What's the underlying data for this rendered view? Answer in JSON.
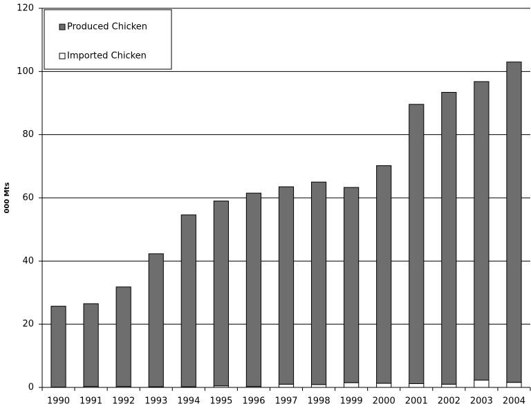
{
  "chart_data": {
    "type": "stacked-bar",
    "y_label": "000 Mts",
    "categories": [
      "1990",
      "1991",
      "1992",
      "1993",
      "1994",
      "1995",
      "1996",
      "1997",
      "1998",
      "1999",
      "2000",
      "2001",
      "2002",
      "2003",
      "2004"
    ],
    "series": [
      {
        "name": "Imported Chicken",
        "color": "#ffffff",
        "values": [
          0.1,
          0.3,
          0.3,
          0.2,
          0.2,
          0.5,
          0.3,
          1.0,
          0.9,
          1.5,
          1.3,
          1.2,
          1.0,
          2.3,
          1.6
        ]
      },
      {
        "name": "Produced Chicken",
        "color": "#6e6e6e",
        "values": [
          25.6,
          26.2,
          31.5,
          42.1,
          54.4,
          58.5,
          61.2,
          62.5,
          64.1,
          61.8,
          68.9,
          88.4,
          92.4,
          94.5,
          101.4
        ]
      }
    ],
    "ylim": [
      0,
      120
    ],
    "yticks": [
      0,
      20,
      40,
      60,
      80,
      100,
      120
    ],
    "grid": true,
    "legend": "upper left"
  }
}
